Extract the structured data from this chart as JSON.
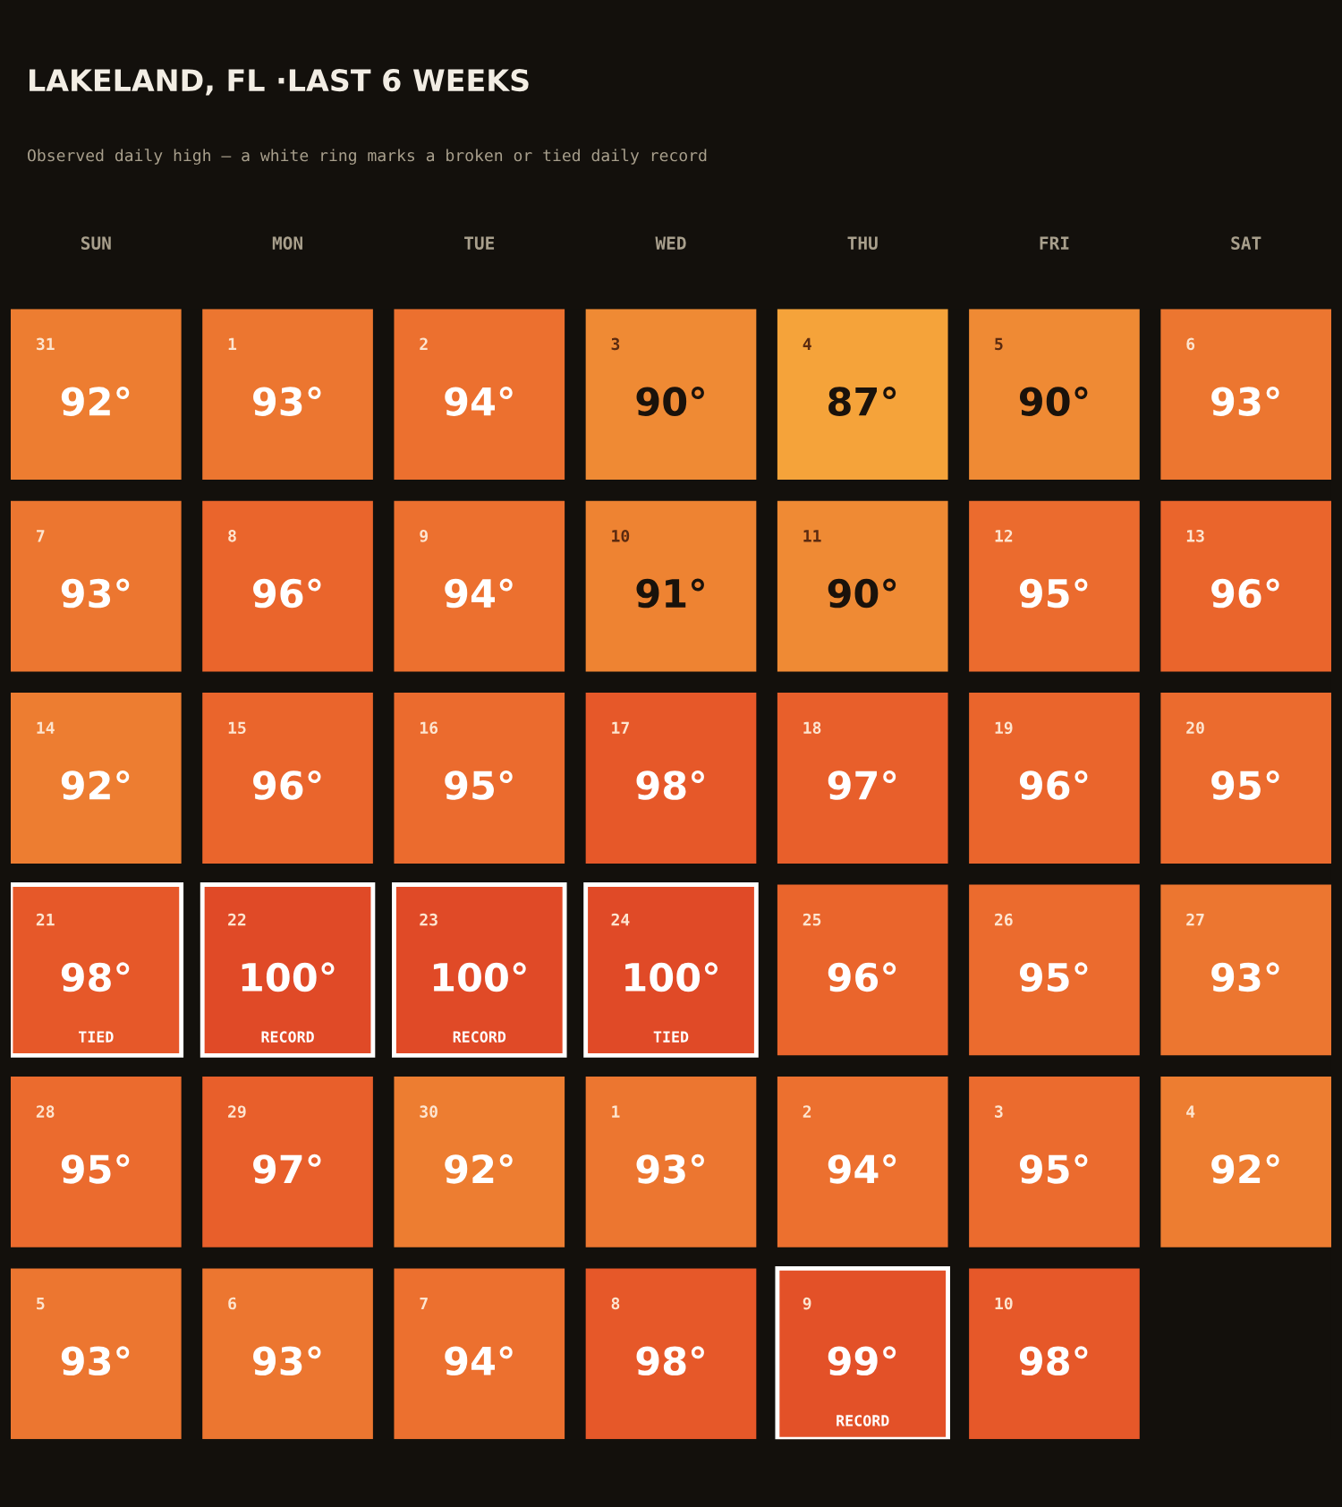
{
  "chart_data": {
    "type": "heatmap",
    "title": "LAKELAND, FL ·LAST 6 WEEKS",
    "subtitle": "Observed daily high — a white ring marks a broken or tied daily record",
    "categories": [
      "SUN",
      "MON",
      "TUE",
      "WED",
      "THU",
      "FRI",
      "SAT"
    ],
    "y_categories": [
      null,
      null,
      null,
      null,
      null,
      null
    ],
    "cells": [
      [
        92,
        93,
        94,
        90,
        87,
        90,
        93
      ],
      [
        93,
        96,
        94,
        91,
        90,
        95,
        96
      ],
      [
        92,
        96,
        95,
        98,
        97,
        96,
        95
      ],
      [
        98,
        100,
        100,
        100,
        96,
        95,
        93
      ],
      [
        95,
        97,
        92,
        93,
        94,
        95,
        92
      ],
      [
        93,
        93,
        94,
        98,
        99,
        98,
        null
      ]
    ],
    "cell_labels": [
      [
        "92°",
        "93°",
        "94°",
        "90°",
        "87°",
        "90°",
        "93°"
      ],
      [
        "93°",
        "96°",
        "94°",
        "91°",
        "90°",
        "95°",
        "96°"
      ],
      [
        "92°",
        "96°",
        "95°",
        "98°",
        "97°",
        "96°",
        "95°"
      ],
      [
        "98°",
        "100°",
        "100°",
        "100°",
        "96°",
        "95°",
        "93°"
      ],
      [
        "95°",
        "97°",
        "92°",
        "93°",
        "94°",
        "95°",
        "92°"
      ],
      [
        "93°",
        "93°",
        "94°",
        "98°",
        "99°",
        "98°",
        null
      ]
    ],
    "annotations": [
      "31",
      "1",
      "2",
      "3",
      "4",
      "5",
      "6",
      "7",
      "8",
      "9",
      "10",
      "11",
      "12",
      "13",
      "14",
      "15",
      "16",
      "17",
      "18",
      "19",
      "20",
      "21\nTIED",
      "22\nRECORD",
      "23\nRECORD",
      "24\nTIED",
      "25",
      "26",
      "27",
      "28",
      "29",
      "30",
      "1",
      "2",
      "3",
      "4",
      "5",
      "6",
      "7",
      "8",
      "9\nRECORD",
      "10"
    ]
  }
}
